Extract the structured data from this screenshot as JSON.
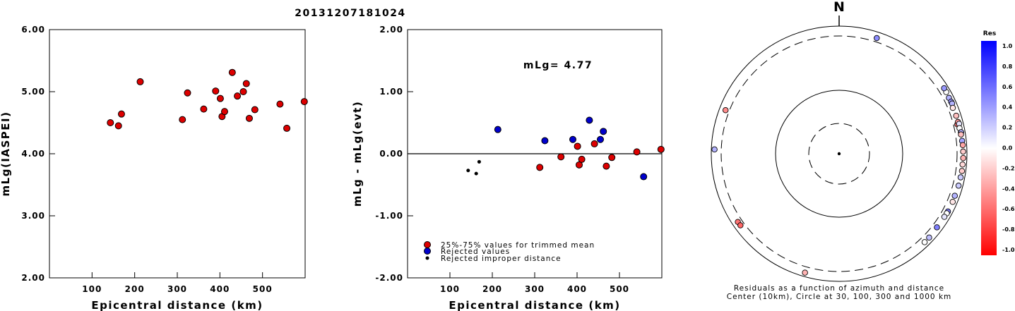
{
  "title": "20131207181024",
  "colors": {
    "red": "#dd0000",
    "blue": "#0000cc",
    "black": "#000000"
  },
  "chart_data": [
    {
      "type": "scatter",
      "panel": "left",
      "xlabel": "Epicentral distance (km)",
      "ylabel": "mLg(IASPEI)",
      "xlim": [
        0,
        600
      ],
      "ylim": [
        2.0,
        6.0
      ],
      "x_ticks": [
        {
          "v": 100,
          "label": "100"
        },
        {
          "v": 200,
          "label": "200"
        },
        {
          "v": 300,
          "label": "300"
        },
        {
          "v": 400,
          "label": "400"
        },
        {
          "v": 500,
          "label": "500"
        }
      ],
      "y_ticks": [
        {
          "v": 2,
          "label": "2.00"
        },
        {
          "v": 3,
          "label": "3.00"
        },
        {
          "v": 4,
          "label": "4.00"
        },
        {
          "v": 5,
          "label": "5.00"
        },
        {
          "v": 6,
          "label": "6.00"
        }
      ],
      "points": [
        {
          "x": 143,
          "y": 4.5
        },
        {
          "x": 162,
          "y": 4.45
        },
        {
          "x": 169,
          "y": 4.64
        },
        {
          "x": 213,
          "y": 5.16
        },
        {
          "x": 312,
          "y": 4.55
        },
        {
          "x": 324,
          "y": 4.98
        },
        {
          "x": 362,
          "y": 4.72
        },
        {
          "x": 390,
          "y": 5.01
        },
        {
          "x": 401,
          "y": 4.89
        },
        {
          "x": 405,
          "y": 4.6
        },
        {
          "x": 411,
          "y": 4.68
        },
        {
          "x": 429,
          "y": 5.31
        },
        {
          "x": 441,
          "y": 4.93
        },
        {
          "x": 455,
          "y": 5.0
        },
        {
          "x": 462,
          "y": 5.13
        },
        {
          "x": 469,
          "y": 4.57
        },
        {
          "x": 482,
          "y": 4.71
        },
        {
          "x": 541,
          "y": 4.8
        },
        {
          "x": 557,
          "y": 4.41
        },
        {
          "x": 598,
          "y": 4.84
        }
      ]
    },
    {
      "type": "scatter",
      "panel": "middle",
      "xlabel": "Epicentral distance (km)",
      "ylabel": "mLg - mLg(evt)",
      "annotation": "mLg= 4.77",
      "xlim": [
        0,
        600
      ],
      "ylim": [
        -2.0,
        2.0
      ],
      "x_ticks": [
        {
          "v": 100,
          "label": "100"
        },
        {
          "v": 200,
          "label": "200"
        },
        {
          "v": 300,
          "label": "300"
        },
        {
          "v": 400,
          "label": "400"
        },
        {
          "v": 500,
          "label": "500"
        }
      ],
      "y_ticks": [
        {
          "v": -2,
          "label": "-2.00"
        },
        {
          "v": -1,
          "label": "-1.00"
        },
        {
          "v": 0,
          "label": "0.00"
        },
        {
          "v": 1,
          "label": "1.00"
        },
        {
          "v": 2,
          "label": "2.00"
        }
      ],
      "legend": [
        {
          "label": "25%-75% values for trimmed mean",
          "kind": "trimmed"
        },
        {
          "label": "Rejected values",
          "kind": "rejected"
        },
        {
          "label": "Rejected improper distance",
          "kind": "improper"
        }
      ],
      "points": [
        {
          "x": 143,
          "y": -0.27,
          "kind": "improper"
        },
        {
          "x": 162,
          "y": -0.32,
          "kind": "improper"
        },
        {
          "x": 169,
          "y": -0.13,
          "kind": "improper"
        },
        {
          "x": 213,
          "y": 0.39,
          "kind": "rejected"
        },
        {
          "x": 312,
          "y": -0.22,
          "kind": "trimmed"
        },
        {
          "x": 324,
          "y": 0.21,
          "kind": "rejected"
        },
        {
          "x": 362,
          "y": -0.05,
          "kind": "trimmed"
        },
        {
          "x": 390,
          "y": 0.23,
          "kind": "rejected"
        },
        {
          "x": 401,
          "y": 0.12,
          "kind": "trimmed"
        },
        {
          "x": 405,
          "y": -0.18,
          "kind": "trimmed"
        },
        {
          "x": 411,
          "y": -0.09,
          "kind": "trimmed"
        },
        {
          "x": 429,
          "y": 0.54,
          "kind": "rejected"
        },
        {
          "x": 441,
          "y": 0.16,
          "kind": "trimmed"
        },
        {
          "x": 455,
          "y": 0.23,
          "kind": "rejected"
        },
        {
          "x": 462,
          "y": 0.36,
          "kind": "rejected"
        },
        {
          "x": 469,
          "y": -0.2,
          "kind": "trimmed"
        },
        {
          "x": 482,
          "y": -0.06,
          "kind": "trimmed"
        },
        {
          "x": 541,
          "y": 0.03,
          "kind": "trimmed"
        },
        {
          "x": 557,
          "y": -0.37,
          "kind": "rejected"
        },
        {
          "x": 598,
          "y": 0.07,
          "kind": "trimmed"
        }
      ]
    },
    {
      "type": "scatter",
      "panel": "polar",
      "north_label": "N",
      "caption_line1": "Residuals as a function of azimuth and distance",
      "caption_line2": "Center (10km), Circle at 30, 100, 300 and 1000 km",
      "rings_km": [
        30,
        100,
        300,
        1000
      ],
      "colorbar": {
        "title": "Res",
        "min": -1.0,
        "max": 1.0,
        "tick_labels": [
          "1.0",
          "0.8",
          "0.6",
          "0.4",
          "0.2",
          "0.0",
          "-0.2",
          "-0.4",
          "-0.6",
          "-0.8",
          "-1.0"
        ]
      },
      "stations": [
        {
          "az": 18,
          "dist": 480,
          "res": 0.45
        },
        {
          "az": 291,
          "dist": 470,
          "res": -0.45
        },
        {
          "az": 236,
          "dist": 500,
          "res": -0.55
        },
        {
          "az": 234,
          "dist": 490,
          "res": -0.6
        },
        {
          "az": 196,
          "dist": 620,
          "res": -0.3
        },
        {
          "az": 272,
          "dist": 680,
          "res": 0.3
        },
        {
          "az": 76,
          "dist": 480,
          "res": -0.55
        },
        {
          "az": 60,
          "dist": 600,
          "res": 0.0
        },
        {
          "az": 58,
          "dist": 610,
          "res": 0.4
        },
        {
          "az": 63,
          "dist": 570,
          "res": 0.3
        },
        {
          "az": 65,
          "dist": 590,
          "res": 0.4
        },
        {
          "az": 66,
          "dist": 600,
          "res": 0.3
        },
        {
          "az": 68,
          "dist": 530,
          "res": -0.1
        },
        {
          "az": 72,
          "dist": 560,
          "res": -0.25
        },
        {
          "az": 75,
          "dist": 555,
          "res": -0.4
        },
        {
          "az": 76,
          "dist": 600,
          "res": 0.1
        },
        {
          "az": 78,
          "dist": 560,
          "res": 0.0
        },
        {
          "az": 80,
          "dist": 600,
          "res": 0.15
        },
        {
          "az": 80,
          "dist": 620,
          "res": 0.3
        },
        {
          "az": 81,
          "dist": 580,
          "res": -0.25
        },
        {
          "az": 84,
          "dist": 600,
          "res": 0.35
        },
        {
          "az": 86,
          "dist": 625,
          "res": -0.35
        },
        {
          "az": 89,
          "dist": 630,
          "res": -0.2
        },
        {
          "az": 92,
          "dist": 640,
          "res": -0.3
        },
        {
          "az": 95,
          "dist": 620,
          "res": -0.15
        },
        {
          "az": 98,
          "dist": 630,
          "res": -0.2
        },
        {
          "az": 101,
          "dist": 610,
          "res": 0.2
        },
        {
          "az": 105,
          "dist": 600,
          "res": 0.2
        },
        {
          "az": 110,
          "dist": 560,
          "res": 0.3
        },
        {
          "az": 113,
          "dist": 580,
          "res": -0.1
        },
        {
          "az": 118,
          "dist": 570,
          "res": 0.5
        },
        {
          "az": 119,
          "dist": 560,
          "res": 0.0
        },
        {
          "az": 121,
          "dist": 540,
          "res": 0.1
        },
        {
          "az": 127,
          "dist": 520,
          "res": 0.5
        },
        {
          "az": 133,
          "dist": 560,
          "res": 0.25
        },
        {
          "az": 136,
          "dist": 560,
          "res": 0.0
        }
      ]
    }
  ]
}
